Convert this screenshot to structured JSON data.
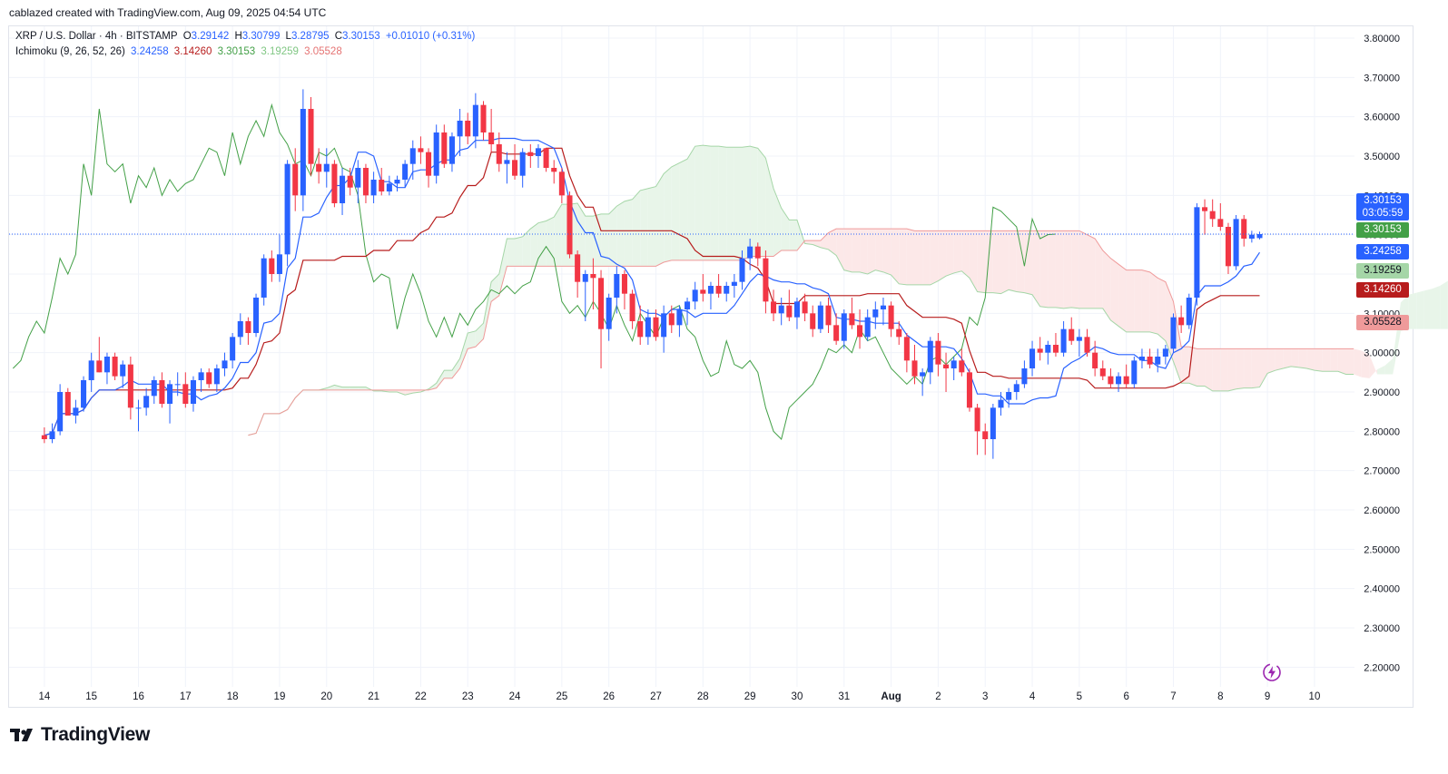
{
  "header": {
    "attribution": "cablazed created with TradingView.com, Aug 09, 2025 04:54 UTC"
  },
  "legend": {
    "symbol": "XRP / U.S. Dollar · 4h · BITSTAMP",
    "o_label": "O",
    "o": "3.29142",
    "h_label": "H",
    "h": "3.30799",
    "l_label": "L",
    "l": "3.28795",
    "c_label": "C",
    "c": "3.30153",
    "change": "+0.01010 (+0.31%)",
    "indicator": "Ichimoku (9, 26, 52, 26)",
    "tenkan": "3.24258",
    "kijun": "3.14260",
    "chikou": "3.30153",
    "span_a": "3.19259",
    "span_b": "3.05528"
  },
  "tags": {
    "last_price": "3.30153",
    "countdown": "03:05:59",
    "chikou": "3.30153",
    "tenkan": "3.24258",
    "span_a": "3.19259",
    "kijun": "3.14260",
    "span_b": "3.05528"
  },
  "colors": {
    "up": "#2962ff",
    "down": "#f23645",
    "tenkan": "#2962ff",
    "kijun": "#b71c1c",
    "chikou": "#43a047",
    "span_a": "#a5d6a7",
    "span_b": "#ef9a9a",
    "cloud_bull": "#e8f5e9",
    "cloud_bear": "#fce8e8"
  },
  "logo": {
    "text": "TradingView"
  },
  "chart_data": {
    "type": "candlestick",
    "y_axis": {
      "min": 2.15,
      "max": 3.83,
      "ticks": [
        "2.20000",
        "2.30000",
        "2.40000",
        "2.50000",
        "2.60000",
        "2.70000",
        "2.80000",
        "2.90000",
        "3.00000",
        "3.10000",
        "3.20000",
        "3.30000",
        "3.40000",
        "3.50000",
        "3.60000",
        "3.70000",
        "3.80000"
      ]
    },
    "x_axis": {
      "labels": [
        "14",
        "15",
        "16",
        "17",
        "18",
        "19",
        "20",
        "21",
        "22",
        "23",
        "24",
        "25",
        "26",
        "27",
        "28",
        "29",
        "30",
        "31",
        "Aug",
        "2",
        "3",
        "4",
        "5",
        "6",
        "7",
        "8",
        "9",
        "10"
      ],
      "label_day_index": [
        1,
        2,
        3,
        4,
        5,
        6,
        7,
        8,
        9,
        10,
        11,
        12,
        13,
        14,
        15,
        16,
        17,
        18,
        19,
        20,
        21,
        22,
        23,
        24,
        25,
        26,
        27,
        28
      ]
    },
    "x_range_days": [
      0.25,
      28.85
    ],
    "bars_per_day": 6,
    "ohlc": [
      [
        2.79,
        2.81,
        2.77,
        2.78
      ],
      [
        2.78,
        2.82,
        2.77,
        2.8
      ],
      [
        2.8,
        2.92,
        2.79,
        2.9
      ],
      [
        2.9,
        2.91,
        2.84,
        2.84
      ],
      [
        2.84,
        2.88,
        2.82,
        2.86
      ],
      [
        2.86,
        2.94,
        2.85,
        2.93
      ],
      [
        2.93,
        3.0,
        2.9,
        2.98
      ],
      [
        2.98,
        3.04,
        2.95,
        2.95
      ],
      [
        2.95,
        3.0,
        2.92,
        2.99
      ],
      [
        2.99,
        3.0,
        2.93,
        2.94
      ],
      [
        2.94,
        2.98,
        2.91,
        2.97
      ],
      [
        2.97,
        2.99,
        2.83,
        2.86
      ],
      [
        2.86,
        2.88,
        2.8,
        2.86
      ],
      [
        2.86,
        2.91,
        2.84,
        2.89
      ],
      [
        2.89,
        2.94,
        2.87,
        2.93
      ],
      [
        2.93,
        2.95,
        2.86,
        2.87
      ],
      [
        2.87,
        2.93,
        2.82,
        2.92
      ],
      [
        2.92,
        2.95,
        2.89,
        2.92
      ],
      [
        2.92,
        2.95,
        2.86,
        2.87
      ],
      [
        2.87,
        2.94,
        2.85,
        2.93
      ],
      [
        2.93,
        2.96,
        2.9,
        2.95
      ],
      [
        2.95,
        2.96,
        2.91,
        2.92
      ],
      [
        2.92,
        2.97,
        2.9,
        2.96
      ],
      [
        2.96,
        3.0,
        2.94,
        2.98
      ],
      [
        2.98,
        3.05,
        2.96,
        3.04
      ],
      [
        3.04,
        3.1,
        3.02,
        3.08
      ],
      [
        3.08,
        3.09,
        3.02,
        3.05
      ],
      [
        3.05,
        3.15,
        3.04,
        3.14
      ],
      [
        3.14,
        3.25,
        3.12,
        3.24
      ],
      [
        3.24,
        3.26,
        3.18,
        3.2
      ],
      [
        3.2,
        3.3,
        3.18,
        3.25
      ],
      [
        3.25,
        3.49,
        3.22,
        3.48
      ],
      [
        3.48,
        3.52,
        3.36,
        3.4
      ],
      [
        3.4,
        3.67,
        3.36,
        3.62
      ],
      [
        3.62,
        3.65,
        3.45,
        3.48
      ],
      [
        3.48,
        3.52,
        3.43,
        3.46
      ],
      [
        3.46,
        3.52,
        3.42,
        3.48
      ],
      [
        3.48,
        3.49,
        3.37,
        3.38
      ],
      [
        3.38,
        3.47,
        3.35,
        3.45
      ],
      [
        3.45,
        3.47,
        3.4,
        3.42
      ],
      [
        3.42,
        3.49,
        3.38,
        3.47
      ],
      [
        3.47,
        3.48,
        3.38,
        3.4
      ],
      [
        3.4,
        3.46,
        3.38,
        3.44
      ],
      [
        3.44,
        3.47,
        3.4,
        3.41
      ],
      [
        3.41,
        3.45,
        3.4,
        3.43
      ],
      [
        3.43,
        3.45,
        3.41,
        3.44
      ],
      [
        3.44,
        3.49,
        3.42,
        3.48
      ],
      [
        3.48,
        3.54,
        3.44,
        3.52
      ],
      [
        3.52,
        3.55,
        3.48,
        3.51
      ],
      [
        3.51,
        3.52,
        3.42,
        3.45
      ],
      [
        3.45,
        3.58,
        3.43,
        3.56
      ],
      [
        3.56,
        3.58,
        3.47,
        3.48
      ],
      [
        3.48,
        3.56,
        3.46,
        3.55
      ],
      [
        3.55,
        3.62,
        3.5,
        3.59
      ],
      [
        3.59,
        3.61,
        3.53,
        3.55
      ],
      [
        3.55,
        3.66,
        3.52,
        3.63
      ],
      [
        3.63,
        3.64,
        3.54,
        3.56
      ],
      [
        3.56,
        3.62,
        3.51,
        3.53
      ],
      [
        3.53,
        3.56,
        3.46,
        3.48
      ],
      [
        3.48,
        3.51,
        3.43,
        3.49
      ],
      [
        3.49,
        3.53,
        3.44,
        3.45
      ],
      [
        3.45,
        3.52,
        3.42,
        3.51
      ],
      [
        3.51,
        3.53,
        3.47,
        3.5
      ],
      [
        3.5,
        3.53,
        3.47,
        3.52
      ],
      [
        3.52,
        3.52,
        3.46,
        3.47
      ],
      [
        3.47,
        3.49,
        3.43,
        3.46
      ],
      [
        3.46,
        3.47,
        3.38,
        3.4
      ],
      [
        3.4,
        3.41,
        3.24,
        3.25
      ],
      [
        3.25,
        3.26,
        3.14,
        3.18
      ],
      [
        3.18,
        3.21,
        3.08,
        3.2
      ],
      [
        3.2,
        3.24,
        3.11,
        3.19
      ],
      [
        3.19,
        3.21,
        2.96,
        3.06
      ],
      [
        3.06,
        3.15,
        3.03,
        3.14
      ],
      [
        3.14,
        3.22,
        3.1,
        3.2
      ],
      [
        3.2,
        3.21,
        3.11,
        3.15
      ],
      [
        3.15,
        3.16,
        3.06,
        3.08
      ],
      [
        3.08,
        3.12,
        3.02,
        3.04
      ],
      [
        3.04,
        3.11,
        3.02,
        3.09
      ],
      [
        3.09,
        3.11,
        3.03,
        3.04
      ],
      [
        3.04,
        3.12,
        3.0,
        3.1
      ],
      [
        3.1,
        3.12,
        3.05,
        3.07
      ],
      [
        3.07,
        3.12,
        3.04,
        3.11
      ],
      [
        3.11,
        3.14,
        3.07,
        3.13
      ],
      [
        3.13,
        3.18,
        3.11,
        3.16
      ],
      [
        3.16,
        3.2,
        3.13,
        3.15
      ],
      [
        3.15,
        3.18,
        3.11,
        3.17
      ],
      [
        3.17,
        3.2,
        3.14,
        3.15
      ],
      [
        3.15,
        3.18,
        3.13,
        3.17
      ],
      [
        3.17,
        3.2,
        3.14,
        3.18
      ],
      [
        3.18,
        3.26,
        3.16,
        3.24
      ],
      [
        3.24,
        3.29,
        3.21,
        3.27
      ],
      [
        3.27,
        3.28,
        3.22,
        3.24
      ],
      [
        3.24,
        3.26,
        3.1,
        3.13
      ],
      [
        3.13,
        3.16,
        3.08,
        3.1
      ],
      [
        3.1,
        3.14,
        3.07,
        3.12
      ],
      [
        3.12,
        3.16,
        3.08,
        3.09
      ],
      [
        3.09,
        3.14,
        3.06,
        3.13
      ],
      [
        3.13,
        3.15,
        3.08,
        3.1
      ],
      [
        3.1,
        3.12,
        3.04,
        3.06
      ],
      [
        3.06,
        3.13,
        3.05,
        3.12
      ],
      [
        3.12,
        3.14,
        3.05,
        3.07
      ],
      [
        3.07,
        3.1,
        3.02,
        3.03
      ],
      [
        3.03,
        3.11,
        3.01,
        3.1
      ],
      [
        3.1,
        3.14,
        3.06,
        3.07
      ],
      [
        3.07,
        3.11,
        3.01,
        3.04
      ],
      [
        3.04,
        3.11,
        3.03,
        3.09
      ],
      [
        3.09,
        3.13,
        3.06,
        3.11
      ],
      [
        3.11,
        3.14,
        3.07,
        3.12
      ],
      [
        3.12,
        3.13,
        3.04,
        3.06
      ],
      [
        3.06,
        3.08,
        3.02,
        3.04
      ],
      [
        3.04,
        3.05,
        2.95,
        2.98
      ],
      [
        2.98,
        3.02,
        2.92,
        2.94
      ],
      [
        2.94,
        2.96,
        2.89,
        2.95
      ],
      [
        2.95,
        3.04,
        2.92,
        3.03
      ],
      [
        3.03,
        3.05,
        2.94,
        2.97
      ],
      [
        2.97,
        3.0,
        2.9,
        2.96
      ],
      [
        2.96,
        2.99,
        2.93,
        2.98
      ],
      [
        2.98,
        3.01,
        2.94,
        2.95
      ],
      [
        2.95,
        2.96,
        2.85,
        2.86
      ],
      [
        2.86,
        2.87,
        2.74,
        2.8
      ],
      [
        2.8,
        2.82,
        2.74,
        2.78
      ],
      [
        2.78,
        2.87,
        2.73,
        2.86
      ],
      [
        2.86,
        2.9,
        2.84,
        2.88
      ],
      [
        2.88,
        2.91,
        2.86,
        2.9
      ],
      [
        2.9,
        2.93,
        2.88,
        2.92
      ],
      [
        2.92,
        2.98,
        2.91,
        2.96
      ],
      [
        2.96,
        3.03,
        2.94,
        3.01
      ],
      [
        3.01,
        3.04,
        2.98,
        3.0
      ],
      [
        3.0,
        3.03,
        2.97,
        3.02
      ],
      [
        3.02,
        3.05,
        2.99,
        3.0
      ],
      [
        3.0,
        3.08,
        2.99,
        3.06
      ],
      [
        3.06,
        3.09,
        3.02,
        3.03
      ],
      [
        3.03,
        3.06,
        2.99,
        3.04
      ],
      [
        3.04,
        3.06,
        2.99,
        3.0
      ],
      [
        3.0,
        3.03,
        2.94,
        2.96
      ],
      [
        2.96,
        2.98,
        2.93,
        2.94
      ],
      [
        2.94,
        2.96,
        2.91,
        2.92
      ],
      [
        2.92,
        2.95,
        2.9,
        2.94
      ],
      [
        2.94,
        2.97,
        2.91,
        2.92
      ],
      [
        2.92,
        2.99,
        2.91,
        2.98
      ],
      [
        2.98,
        3.01,
        2.96,
        2.99
      ],
      [
        2.99,
        3.01,
        2.96,
        2.97
      ],
      [
        2.97,
        3.01,
        2.95,
        2.99
      ],
      [
        2.99,
        3.02,
        2.97,
        3.01
      ],
      [
        3.01,
        3.1,
        3.0,
        3.09
      ],
      [
        3.09,
        3.12,
        3.05,
        3.07
      ],
      [
        3.07,
        3.15,
        3.06,
        3.14
      ],
      [
        3.14,
        3.38,
        3.12,
        3.37
      ],
      [
        3.37,
        3.39,
        3.3,
        3.36
      ],
      [
        3.36,
        3.39,
        3.32,
        3.34
      ],
      [
        3.34,
        3.38,
        3.31,
        3.32
      ],
      [
        3.32,
        3.33,
        3.2,
        3.22
      ],
      [
        3.22,
        3.35,
        3.21,
        3.34
      ],
      [
        3.34,
        3.35,
        3.27,
        3.29
      ],
      [
        3.29,
        3.31,
        3.28,
        3.3
      ],
      [
        3.29142,
        3.30799,
        3.28795,
        3.30153
      ]
    ]
  }
}
